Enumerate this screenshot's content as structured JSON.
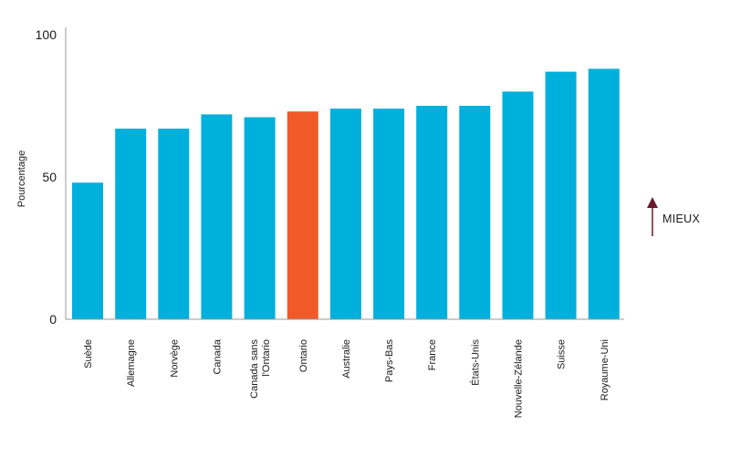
{
  "chart_data": {
    "type": "bar",
    "categories": [
      "Suède",
      "Allemagne",
      "Norvège",
      "Canada",
      "Canada sans l'Ontario",
      "Ontario",
      "Australie",
      "Pays-Bas",
      "France",
      "États-Unis",
      "Nouvelle-Zélande",
      "Suisse",
      "Royaume-Uni"
    ],
    "category_lines": [
      [
        "Suède"
      ],
      [
        "Allemagne"
      ],
      [
        "Norvège"
      ],
      [
        "Canada"
      ],
      [
        "Canada sans",
        "l'Ontario"
      ],
      [
        "Ontario"
      ],
      [
        "Australie"
      ],
      [
        "Pays-Bas"
      ],
      [
        "France"
      ],
      [
        "États-Unis"
      ],
      [
        "Nouvelle-Zélande"
      ],
      [
        "Suisse"
      ],
      [
        "Royaume-Uni"
      ]
    ],
    "values": [
      48,
      67,
      67,
      72,
      71,
      73,
      74,
      74,
      75,
      75,
      80,
      87,
      88
    ],
    "highlight_index": 5,
    "ylabel": "Pourcentage",
    "ylim": [
      0,
      100
    ],
    "yticks": [
      0,
      50,
      100
    ],
    "grid": false,
    "colors": {
      "bar": "#00b0dc",
      "highlight": "#f05a28",
      "axis": "#999999",
      "arrow": "#6b1a2a"
    },
    "annotation": {
      "label": "MIEUX",
      "icon": "arrow-up-icon"
    }
  }
}
